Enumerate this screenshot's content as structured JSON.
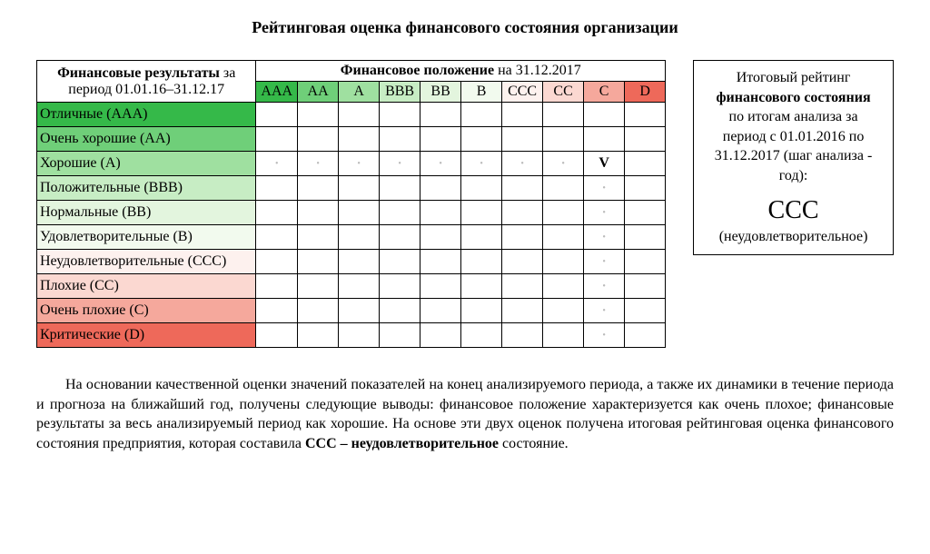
{
  "title": "Рейтинговая оценка финансового состояния организации",
  "table": {
    "results_header": "Финансовые результаты",
    "results_period_prefix": " за период ",
    "results_period": "01.01.16–31.12.17",
    "position_header": "Финансовое положение",
    "position_date_prefix": " на ",
    "position_date": "31.12.2017",
    "col_labels": [
      "AAA",
      "AA",
      "A",
      "BBB",
      "BB",
      "B",
      "CCC",
      "CC",
      "C",
      "D"
    ],
    "col_colors": [
      "#35b949",
      "#6fcf79",
      "#9fe0a0",
      "#c7edc4",
      "#e3f5de",
      "#f2faee",
      "#fdf1ee",
      "#fbd8d1",
      "#f5a89c",
      "#ee695a"
    ],
    "rows": [
      {
        "label": "Отличные (AAA)",
        "color": "#35b949"
      },
      {
        "label": "Очень хорошие (AA)",
        "color": "#6fcf79"
      },
      {
        "label": "Хорошие (A)",
        "color": "#9fe0a0"
      },
      {
        "label": "Положительные (BBB)",
        "color": "#c7edc4"
      },
      {
        "label": "Нормальные (BB)",
        "color": "#e3f5de"
      },
      {
        "label": "Удовлетворительные (B)",
        "color": "#f2faee"
      },
      {
        "label": "Неудовлетворительные (CCC)",
        "color": "#fdf1ee"
      },
      {
        "label": "Плохие (CC)",
        "color": "#fbd8d1"
      },
      {
        "label": "Очень плохие (C)",
        "color": "#f5a89c"
      },
      {
        "label": "Критические (D)",
        "color": "#ee695a"
      }
    ],
    "dots": [
      {
        "row": 2,
        "cols": [
          0,
          1,
          2,
          3,
          4,
          5,
          6,
          7
        ]
      },
      {
        "row": 3,
        "cols": [
          8
        ]
      },
      {
        "row": 4,
        "cols": [
          8
        ]
      },
      {
        "row": 5,
        "cols": [
          8
        ]
      },
      {
        "row": 6,
        "cols": [
          8
        ]
      },
      {
        "row": 7,
        "cols": [
          8
        ]
      },
      {
        "row": 8,
        "cols": [
          8
        ]
      },
      {
        "row": 9,
        "cols": [
          8
        ]
      }
    ],
    "check": {
      "row": 2,
      "col": 8,
      "glyph": "V"
    }
  },
  "summary": {
    "line1": "Итоговый рейтинг",
    "line2_bold": "финансового состояния",
    "line3": "по итогам анализа за период с 01.01.2016 по 31.12.2017 (шаг анализа - год):",
    "rating": "CCC",
    "rating_desc": "(неудовлетворительное)"
  },
  "paragraph_plain_before": "На основании качественной оценки значений показателей на конец анализируемого периода, а также их динамики в течение периода и прогноза на ближайший год, получены следующие выводы: финансовое положение характеризуется как очень плохое; финансовые результаты за весь анализируемый период как хорошие. На основе эти двух оценок получена итоговая рейтинговая оценка финансового состояния предприятия, которая составила ",
  "paragraph_bold": "CCC – неудовлетворительное",
  "paragraph_plain_after": " состояние."
}
